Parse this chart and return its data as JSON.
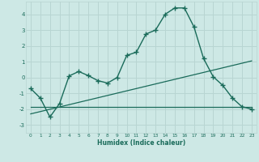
{
  "xlabel": "Humidex (Indice chaleur)",
  "background_color": "#cde8e5",
  "grid_color": "#b8d5d2",
  "line_color": "#1a6b5a",
  "xlim": [
    -0.5,
    23.5
  ],
  "ylim": [
    -3.5,
    4.8
  ],
  "xticks": [
    0,
    1,
    2,
    3,
    4,
    5,
    6,
    7,
    8,
    9,
    10,
    11,
    12,
    13,
    14,
    15,
    16,
    17,
    18,
    19,
    20,
    21,
    22,
    23
  ],
  "yticks": [
    -3,
    -2,
    -1,
    0,
    1,
    2,
    3,
    4
  ],
  "line1_x": [
    0,
    1,
    2,
    3,
    4,
    5,
    6,
    7,
    8,
    9,
    10,
    11,
    12,
    13,
    14,
    15,
    16,
    17,
    18,
    19,
    20,
    21,
    22,
    23
  ],
  "line1_y": [
    -0.7,
    -1.3,
    -2.5,
    -1.65,
    0.1,
    0.38,
    0.12,
    -0.2,
    -0.35,
    0.0,
    1.4,
    1.6,
    2.75,
    3.0,
    4.0,
    4.4,
    4.4,
    3.2,
    1.2,
    0.05,
    -0.5,
    -1.3,
    -1.85,
    -2.0
  ],
  "line2_x": [
    0,
    23
  ],
  "line2_y": [
    -1.85,
    -1.85
  ],
  "line3_x": [
    0,
    23
  ],
  "line3_y": [
    -2.3,
    1.05
  ]
}
